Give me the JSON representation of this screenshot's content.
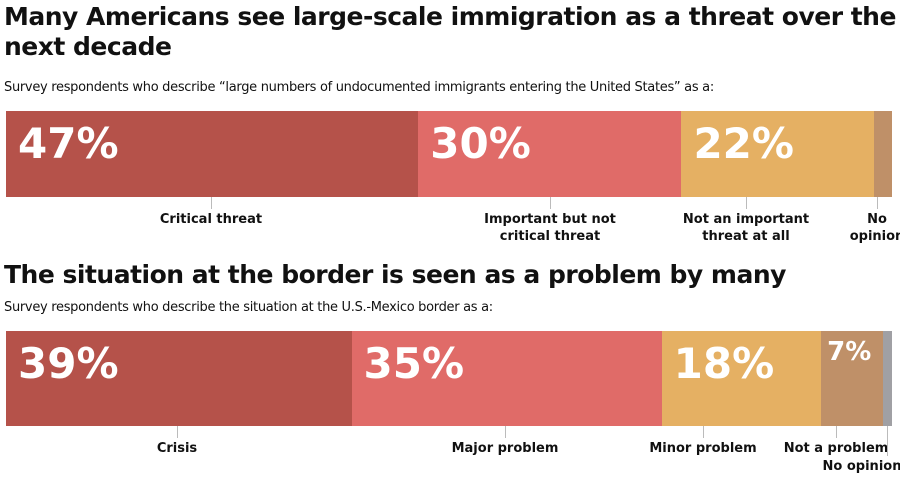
{
  "chart_data": [
    {
      "type": "bar",
      "orientation": "horizontal-stacked",
      "title": "Many Americans see large-scale immigration as a threat over the next decade",
      "subtitle": "Survey respondents who describe “large numbers of undocumented immigrants entering the United States” as a:",
      "categories": [
        "Critical threat",
        "Important but not critical threat",
        "Not an important threat at all",
        "No opinion"
      ],
      "values": [
        47,
        30,
        22,
        2
      ],
      "data_labels": [
        "47%",
        "30%",
        "22%",
        ""
      ],
      "colors": [
        "#b5524a",
        "#e06b68",
        "#e5b063",
        "#bf9068"
      ]
    },
    {
      "type": "bar",
      "orientation": "horizontal-stacked",
      "title": "The situation at the border is seen as a problem by many",
      "subtitle": "Survey respondents who describe the situation at the U.S.-Mexico border as a:",
      "categories": [
        "Crisis",
        "Major problem",
        "Minor problem",
        "Not a problem",
        "No opinion"
      ],
      "values": [
        39,
        35,
        18,
        7,
        1
      ],
      "data_labels": [
        "39%",
        "35%",
        "18%",
        "7%",
        ""
      ],
      "colors": [
        "#b5524a",
        "#e06b68",
        "#e5b063",
        "#bf9068",
        "#a0a0a4"
      ]
    }
  ]
}
